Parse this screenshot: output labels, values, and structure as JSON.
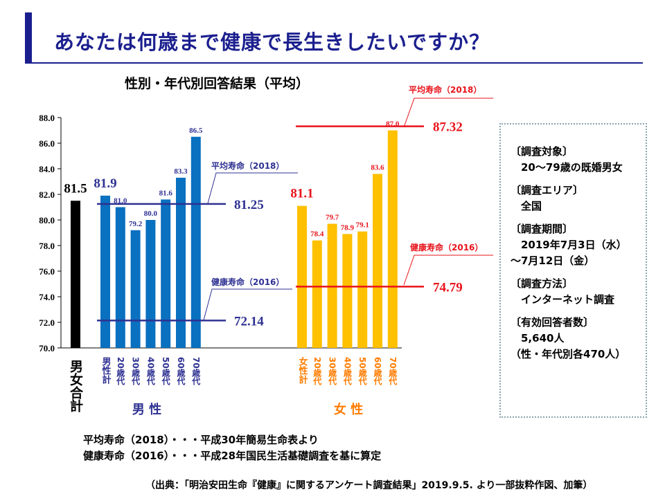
{
  "title": "あなたは何歳まで健康で長生きしたいですか？",
  "subtitle": "性別・年代別回答結果（平均）",
  "chart_data": {
    "type": "bar",
    "ylim": [
      70.0,
      88.0
    ],
    "yticks": [
      "70.0",
      "72.0",
      "74.0",
      "76.0",
      "78.0",
      "80.0",
      "82.0",
      "84.0",
      "86.0",
      "88.0"
    ],
    "grid": false,
    "groups": [
      {
        "name": "",
        "bars": [
          {
            "category": "男女合計",
            "value": 81.5
          }
        ]
      },
      {
        "name": "男 性",
        "bars": [
          {
            "category": "男性計",
            "value": 81.9
          },
          {
            "category": "20歳代",
            "value": 81.0
          },
          {
            "category": "30歳代",
            "value": 79.2
          },
          {
            "category": "40歳代",
            "value": 80.0
          },
          {
            "category": "50歳代",
            "value": 81.6
          },
          {
            "category": "60歳代",
            "value": 83.3
          },
          {
            "category": "70歳代",
            "value": 86.5
          }
        ]
      },
      {
        "name": "女 性",
        "bars": [
          {
            "category": "女性計",
            "value": 81.1
          },
          {
            "category": "20歳代",
            "value": 78.4
          },
          {
            "category": "30歳代",
            "value": 79.7
          },
          {
            "category": "40歳代",
            "value": 78.9
          },
          {
            "category": "50歳代",
            "value": 79.1
          },
          {
            "category": "60歳代",
            "value": 83.6
          },
          {
            "category": "70歳代",
            "value": 87.0
          }
        ]
      }
    ],
    "reference_lines": [
      {
        "label": "平均寿命（2018）",
        "value": 81.25,
        "value_label": "81.25",
        "group": "男 性"
      },
      {
        "label": "健康寿命（2016）",
        "value": 72.14,
        "value_label": "72.14",
        "group": "男 性"
      },
      {
        "label": "平均寿命（2018）",
        "value": 87.32,
        "value_label": "87.32",
        "group": "女 性"
      },
      {
        "label": "健康寿命（2016）",
        "value": 74.79,
        "value_label": "74.79",
        "group": "女 性"
      }
    ],
    "colors": {
      "total": "#000000",
      "male": "#0a70c0",
      "female": "#ffc000",
      "male_text": "#2e3192",
      "female_text": "#e8131b",
      "male_axis": "#2e3192",
      "female_axis": "#ff7c00"
    }
  },
  "survey_info": [
    "〔調査対象〕",
    "　20～79歳の既婚男女",
    "",
    "〔調査エリア〕",
    "　全国",
    "",
    "〔調査期間〕",
    "　2019年7月3日（水）",
    "～7月12日（金）",
    "",
    "〔調査方法〕",
    "　インターネット調査",
    "",
    "〔有効回答者数〕",
    "　5,640人",
    "（性・年代別各470人）"
  ],
  "footnotes": [
    "平均寿命（2018）・・・平成30年簡易生命表より",
    "健康寿命（2016）・・・平成28年国民生活基礎調査を基に算定"
  ],
  "source": "（出典：「明治安田生命『健康』に関するアンケート調査結果」2019.9.5. より一部抜粋作図、加筆）"
}
